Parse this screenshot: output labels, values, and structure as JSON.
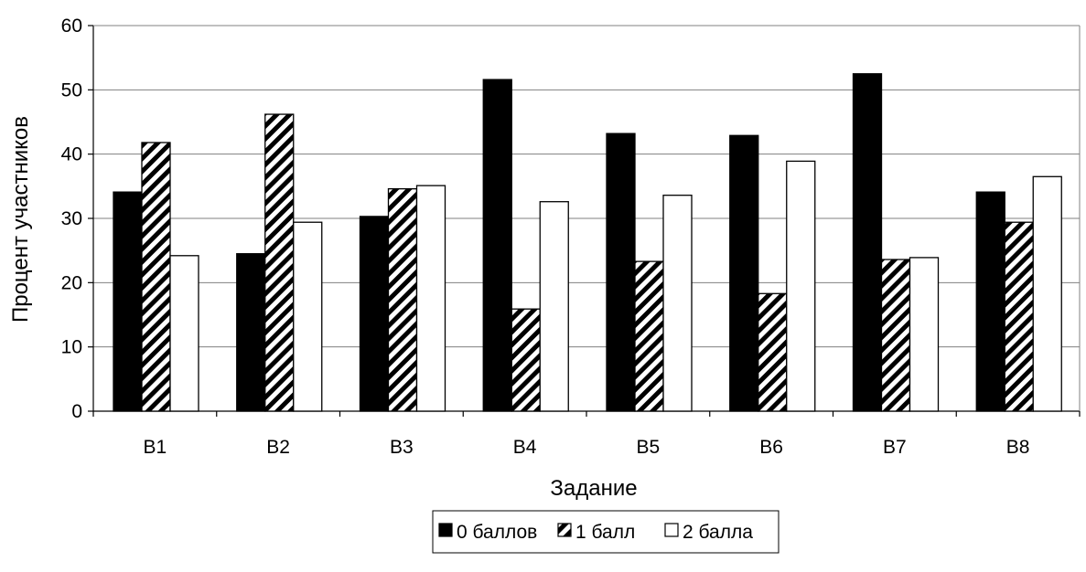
{
  "chart_data": {
    "type": "bar",
    "title": "",
    "xlabel": "Задание",
    "ylabel": "Процент участников",
    "categories": [
      "B1",
      "B2",
      "B3",
      "B4",
      "B5",
      "B6",
      "B7",
      "B8"
    ],
    "ylim": [
      0,
      60
    ],
    "yticks": [
      0,
      10,
      20,
      30,
      40,
      50,
      60
    ],
    "grid": true,
    "legend_position": "bottom",
    "series": [
      {
        "name": "0 баллов",
        "fill": "solid-black",
        "values": [
          34.1,
          24.5,
          30.3,
          51.6,
          43.2,
          42.9,
          52.5,
          34.1
        ]
      },
      {
        "name": "1 балл",
        "fill": "diagonal-hatch",
        "values": [
          41.8,
          46.2,
          34.6,
          15.9,
          23.3,
          18.3,
          23.6,
          29.4
        ]
      },
      {
        "name": "2 балла",
        "fill": "white",
        "values": [
          24.2,
          29.4,
          35.1,
          32.6,
          33.6,
          38.9,
          23.9,
          36.5
        ]
      }
    ],
    "colors": {
      "bar_stroke": "#000000",
      "gridline": "#808080"
    }
  }
}
